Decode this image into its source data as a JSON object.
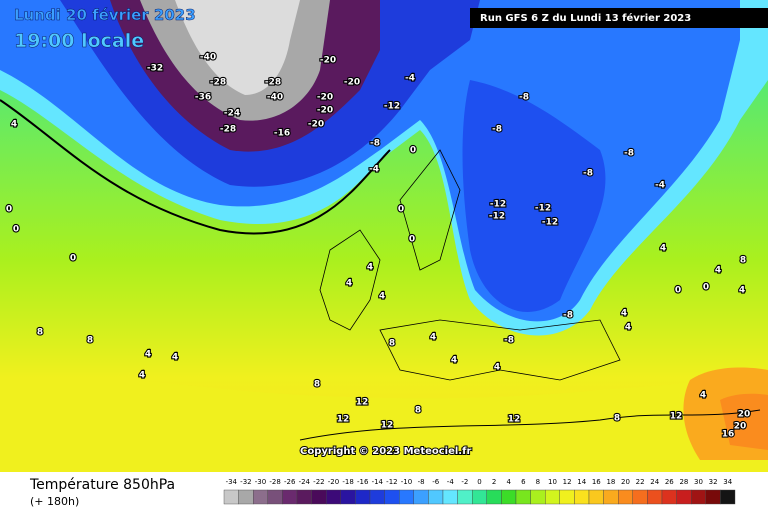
{
  "header": {
    "date": "Lundi 20 février 2023",
    "time": "19:00 locale",
    "run": "Run GFS 6 Z du Lundi 13 février 2023"
  },
  "copyright": "Copyright © 2023 Meteociel.fr",
  "footer": {
    "title": "Température 850hPa",
    "lead": "(+ 180h)"
  },
  "legend": {
    "ticks": [
      -34,
      -32,
      -30,
      -28,
      -26,
      -24,
      -22,
      -20,
      -18,
      -16,
      -14,
      -12,
      -10,
      -8,
      -6,
      -4,
      -2,
      0,
      2,
      4,
      6,
      8,
      10,
      12,
      14,
      16,
      18,
      20,
      22,
      24,
      26,
      28,
      30,
      32,
      34
    ],
    "colors": [
      "#c8c8c8",
      "#a8a8a8",
      "#8c6e8c",
      "#78507a",
      "#6a2a6e",
      "#5a1a5e",
      "#4a0a5a",
      "#3c0a78",
      "#2a14a0",
      "#1e28c8",
      "#1e3cdc",
      "#1e50f0",
      "#2878ff",
      "#3ca0ff",
      "#50c8ff",
      "#64e6ff",
      "#50f0c8",
      "#32e696",
      "#28dc5a",
      "#3cdc28",
      "#78e61e",
      "#aaf01e",
      "#d2f51e",
      "#f0f01e",
      "#fae11e",
      "#fac81e",
      "#faaa1e",
      "#fa8c1e",
      "#f56e1e",
      "#eb501e",
      "#dc321e",
      "#c81e1e",
      "#a01414",
      "#780a0a",
      "#141414"
    ]
  },
  "map_labels": [
    -32,
    -40,
    -28,
    -36,
    -24,
    -28,
    -40,
    -28,
    -20,
    -20,
    -20,
    -20,
    -16,
    -20,
    -4,
    -12,
    -8,
    -8,
    -8,
    -4,
    0,
    -8,
    -8,
    -4,
    -12,
    -12,
    -12,
    -12,
    0,
    0,
    0,
    0,
    0,
    4,
    4,
    4,
    4,
    8,
    4,
    4,
    4,
    -8,
    -8,
    4,
    4,
    8,
    8,
    4,
    4,
    4,
    8,
    12,
    12,
    12,
    8,
    12,
    8,
    12,
    16,
    20,
    20,
    4,
    4,
    8,
    4,
    0,
    0,
    4
  ]
}
